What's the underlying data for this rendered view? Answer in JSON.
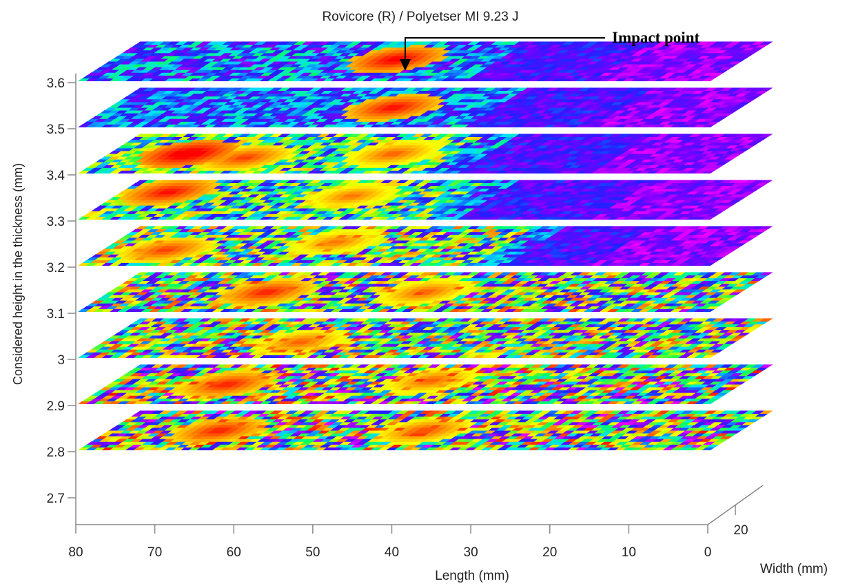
{
  "chart_data": {
    "type": "heatmap",
    "title": "Rovicore (R) / Polyetser MI 9.23 J",
    "annotation": "Impact point",
    "ylabel": "Considered height in the thickness (mm)",
    "xlabel": "Length (mm)",
    "zlabel": "Width (mm)",
    "y_ticks": [
      "3.6",
      "3.5",
      "3.4",
      "3.3",
      "3.2",
      "3.1",
      "3",
      "2.9",
      "2.8",
      "2.7"
    ],
    "x_ticks": [
      "80",
      "70",
      "60",
      "50",
      "40",
      "30",
      "20",
      "10",
      "0"
    ],
    "z_ticks": [
      "20"
    ],
    "impact_point_length": 38,
    "xlim": [
      0,
      80
    ],
    "layers": [
      {
        "height": 3.6,
        "hot_spots": [
          {
            "x": 44,
            "y": 0.55,
            "v": 0.82
          }
        ],
        "cool_region_from": 35,
        "noise": 0.45
      },
      {
        "height": 3.5,
        "hot_spots": [
          {
            "x": 44,
            "y": 0.5,
            "v": 0.8
          }
        ],
        "cool_region_from": 35,
        "noise": 0.35
      },
      {
        "height": 3.4,
        "hot_spots": [
          {
            "x": 70,
            "y": 0.5,
            "v": 0.85
          },
          {
            "x": 62,
            "y": 0.4,
            "v": 0.75
          },
          {
            "x": 44,
            "y": 0.5,
            "v": 0.72
          }
        ],
        "cool_region_from": 36,
        "noise": 0.4
      },
      {
        "height": 3.3,
        "hot_spots": [
          {
            "x": 74,
            "y": 0.7,
            "v": 0.8
          },
          {
            "x": 50,
            "y": 0.6,
            "v": 0.7
          }
        ],
        "cool_region_from": 36,
        "noise": 0.4
      },
      {
        "height": 3.2,
        "hot_spots": [
          {
            "x": 72,
            "y": 0.4,
            "v": 0.75
          },
          {
            "x": 52,
            "y": 0.6,
            "v": 0.7
          }
        ],
        "cool_region_from": 30,
        "noise": 0.5
      },
      {
        "height": 3.1,
        "hot_spots": [
          {
            "x": 60,
            "y": 0.5,
            "v": 0.78
          },
          {
            "x": 40,
            "y": 0.5,
            "v": 0.72
          }
        ],
        "cool_region_from": null,
        "noise": 0.55
      },
      {
        "height": 3.0,
        "hot_spots": [
          {
            "x": 55,
            "y": 0.4,
            "v": 0.72
          }
        ],
        "cool_region_from": null,
        "noise": 0.55
      },
      {
        "height": 2.9,
        "hot_spots": [
          {
            "x": 65,
            "y": 0.5,
            "v": 0.78
          },
          {
            "x": 40,
            "y": 0.6,
            "v": 0.72
          }
        ],
        "cool_region_from": null,
        "noise": 0.6
      },
      {
        "height": 2.8,
        "hot_spots": [
          {
            "x": 66,
            "y": 0.5,
            "v": 0.78
          },
          {
            "x": 40,
            "y": 0.5,
            "v": 0.74
          }
        ],
        "cool_region_from": null,
        "noise": 0.6
      }
    ],
    "colormap": [
      "#ff00ff",
      "#7b00ff",
      "#2020ff",
      "#00ddff",
      "#00ff66",
      "#aaff00",
      "#ffff00",
      "#ff8800",
      "#ff0000"
    ],
    "grid": false,
    "legend": "none"
  }
}
